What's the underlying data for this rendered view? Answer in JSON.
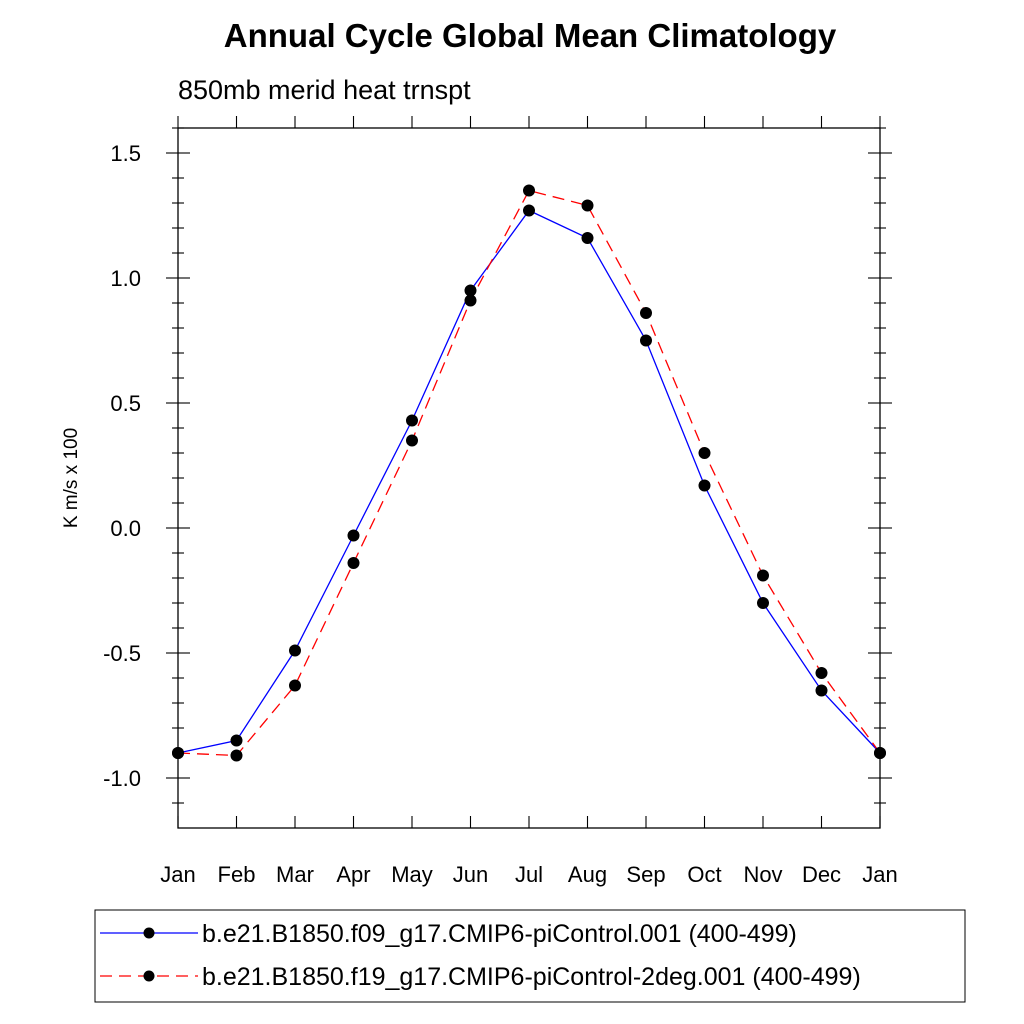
{
  "chart_data": {
    "type": "line",
    "title": "Annual Cycle Global Mean Climatology",
    "subtitle": "850mb merid heat trnspt",
    "xlabel": "",
    "ylabel": "K m/s x 100",
    "categories": [
      "Jan",
      "Feb",
      "Mar",
      "Apr",
      "May",
      "Jun",
      "Jul",
      "Aug",
      "Sep",
      "Oct",
      "Nov",
      "Dec",
      "Jan"
    ],
    "ylim": [
      -1.2,
      1.6
    ],
    "yticks": [
      "1.5",
      "1.0",
      "0.5",
      "0.0",
      "-0.5",
      "-1.0"
    ],
    "grid": false,
    "legend_position": "bottom",
    "series": [
      {
        "name": "b.e21.B1850.f09_g17.CMIP6-piControl.001 (400-499)",
        "color": "#0000ff",
        "line_style": "solid",
        "values": [
          -0.9,
          -0.85,
          -0.49,
          -0.03,
          0.43,
          0.95,
          1.27,
          1.16,
          0.75,
          0.17,
          -0.3,
          -0.65,
          -0.9
        ]
      },
      {
        "name": "b.e21.B1850.f19_g17.CMIP6-piControl-2deg.001 (400-499)",
        "color": "#ff0000",
        "line_style": "dashed",
        "values": [
          -0.9,
          -0.91,
          -0.63,
          -0.14,
          0.35,
          0.91,
          1.35,
          1.29,
          0.86,
          0.3,
          -0.19,
          -0.58,
          -0.9
        ]
      }
    ]
  }
}
